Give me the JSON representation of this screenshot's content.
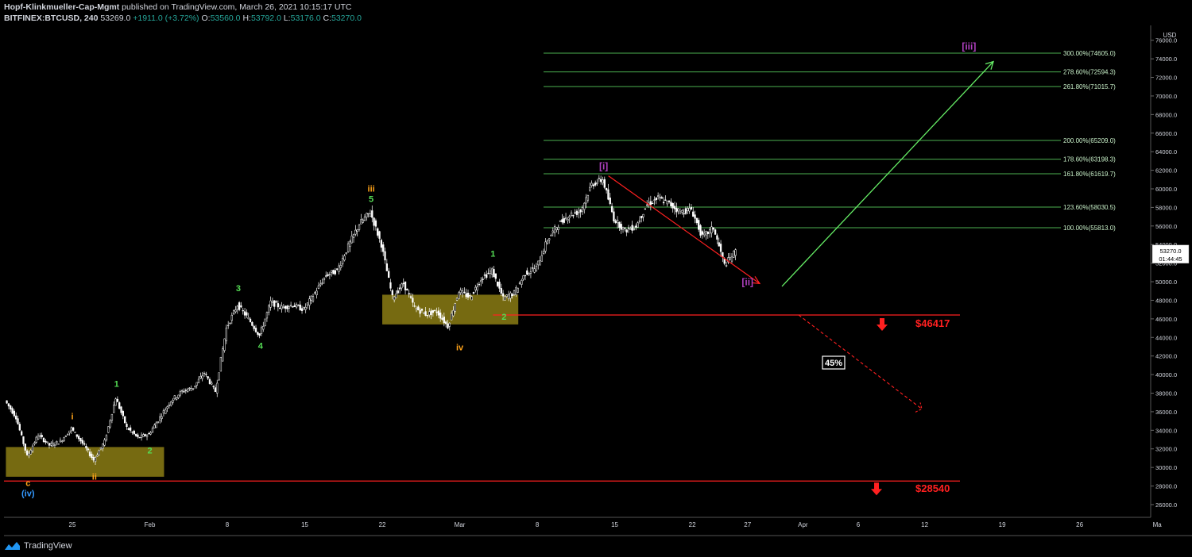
{
  "header": {
    "author": "Hopf-Klinkmueller-Cap-Mgmt",
    "published": "published on TradingView.com, March 26, 2021 10:15:17 UTC",
    "symbol": "BITFINEX:BTCUSD, 240",
    "last": "53269.0",
    "change": "+1911.0 (+3.72%)",
    "o_label": "O:",
    "o": "53560.0",
    "h_label": "H:",
    "h": "53792.0",
    "l_label": "L:",
    "l": "53176.0",
    "c_label": "C:",
    "c": "53270.0"
  },
  "footer": {
    "brand": "TradingView"
  },
  "colors": {
    "background": "#000000",
    "candle": "#ffffff",
    "fib": "#4caf50",
    "red": "#ff2020",
    "green_arrow": "#66ee66",
    "box": "#8b7d14",
    "wave_green": "#55dd55",
    "wave_orange": "#ffa319",
    "wave_purple": "#b040c0",
    "wave_blue": "#3399ff"
  },
  "chart_data": {
    "type": "candlestick",
    "title": "",
    "currency": "USD",
    "ylim": [
      24800,
      77600
    ],
    "x_ticks": [
      "25",
      "Feb",
      "8",
      "15",
      "22",
      "Mar",
      "8",
      "15",
      "22",
      "27",
      "Apr",
      "6",
      "12",
      "19",
      "26",
      "Ma"
    ],
    "x_tick_dates": [
      "2021-01-25",
      "2021-02-01",
      "2021-02-08",
      "2021-02-15",
      "2021-02-22",
      "2021-03-01",
      "2021-03-08",
      "2021-03-15",
      "2021-03-22",
      "2021-03-27",
      "2021-04-01",
      "2021-04-06",
      "2021-04-12",
      "2021-04-19",
      "2021-04-26",
      "2021-05-03"
    ],
    "y_ticks": [
      "26000.0",
      "28000.0",
      "30000.0",
      "32000.0",
      "34000.0",
      "36000.0",
      "38000.0",
      "40000.0",
      "42000.0",
      "44000.0",
      "46000.0",
      "48000.0",
      "50000.0",
      "52000.0",
      "54000.0",
      "56000.0",
      "58000.0",
      "60000.0",
      "62000.0",
      "64000.0",
      "66000.0",
      "68000.0",
      "70000.0",
      "72000.0",
      "74000.0",
      "76000.0"
    ],
    "last_price_label": "53270.0",
    "countdown_label": "01:44:45",
    "price_path": [
      [
        "2021-01-19",
        37200
      ],
      [
        "2021-01-20",
        35400
      ],
      [
        "2021-01-21",
        31200
      ],
      [
        "2021-01-22",
        33500
      ],
      [
        "2021-01-23",
        32400
      ],
      [
        "2021-01-24",
        32800
      ],
      [
        "2021-01-25",
        34200
      ],
      [
        "2021-01-26",
        32600
      ],
      [
        "2021-01-27",
        30800
      ],
      [
        "2021-01-28",
        32800
      ],
      [
        "2021-01-29",
        37500
      ],
      [
        "2021-01-30",
        34300
      ],
      [
        "2021-01-31",
        33200
      ],
      [
        "2021-02-01",
        33600
      ],
      [
        "2021-02-02",
        35400
      ],
      [
        "2021-02-03",
        37200
      ],
      [
        "2021-02-04",
        38200
      ],
      [
        "2021-02-05",
        38600
      ],
      [
        "2021-02-06",
        40200
      ],
      [
        "2021-02-07",
        38200
      ],
      [
        "2021-02-08",
        45000
      ],
      [
        "2021-02-09",
        47500
      ],
      [
        "2021-02-10",
        46000
      ],
      [
        "2021-02-11",
        44200
      ],
      [
        "2021-02-12",
        47800
      ],
      [
        "2021-02-13",
        47200
      ],
      [
        "2021-02-14",
        47500
      ],
      [
        "2021-02-15",
        47000
      ],
      [
        "2021-02-16",
        48800
      ],
      [
        "2021-02-17",
        50700
      ],
      [
        "2021-02-18",
        51200
      ],
      [
        "2021-02-19",
        53800
      ],
      [
        "2021-02-20",
        56200
      ],
      [
        "2021-02-21",
        57500
      ],
      [
        "2021-02-22",
        54000
      ],
      [
        "2021-02-23",
        48300
      ],
      [
        "2021-02-24",
        49800
      ],
      [
        "2021-02-25",
        47200
      ],
      [
        "2021-02-26",
        46500
      ],
      [
        "2021-02-27",
        46800
      ],
      [
        "2021-02-28",
        45200
      ],
      [
        "2021-03-01",
        49000
      ],
      [
        "2021-03-02",
        48300
      ],
      [
        "2021-03-03",
        50300
      ],
      [
        "2021-03-04",
        51200
      ],
      [
        "2021-03-05",
        48200
      ],
      [
        "2021-03-06",
        48800
      ],
      [
        "2021-03-07",
        50900
      ],
      [
        "2021-03-08",
        51500
      ],
      [
        "2021-03-09",
        54500
      ],
      [
        "2021-03-10",
        56200
      ],
      [
        "2021-03-11",
        57200
      ],
      [
        "2021-03-12",
        57600
      ],
      [
        "2021-03-13",
        60500
      ],
      [
        "2021-03-14",
        61000
      ],
      [
        "2021-03-15",
        56800
      ],
      [
        "2021-03-16",
        55500
      ],
      [
        "2021-03-17",
        56000
      ],
      [
        "2021-03-18",
        58300
      ],
      [
        "2021-03-19",
        59000
      ],
      [
        "2021-03-20",
        58400
      ],
      [
        "2021-03-21",
        57500
      ],
      [
        "2021-03-22",
        57800
      ],
      [
        "2021-03-23",
        54800
      ],
      [
        "2021-03-24",
        55800
      ],
      [
        "2021-03-25",
        51800
      ],
      [
        "2021-03-26",
        53270
      ]
    ],
    "fib_levels": [
      {
        "label": "300.00%(74605.0)",
        "value": 74605.0
      },
      {
        "label": "278.60%(72594.3)",
        "value": 72594.3
      },
      {
        "label": "261.80%(71015.7)",
        "value": 71015.7
      },
      {
        "label": "200.00%(65209.0)",
        "value": 65209.0
      },
      {
        "label": "178.60%(63198.3)",
        "value": 63198.3
      },
      {
        "label": "161.80%(61619.7)",
        "value": 61619.7
      },
      {
        "label": "123.60%(58030.5)",
        "value": 58030.5
      },
      {
        "label": "100.00%(55813.0)",
        "value": 55813.0
      }
    ],
    "support_levels": [
      {
        "label": "$46417",
        "value": 46417
      },
      {
        "label": "$28540",
        "value": 28540
      }
    ],
    "zones": [
      {
        "from": "2021-01-19",
        "to": "2021-02-02",
        "low": 29000,
        "high": 32200
      },
      {
        "from": "2021-02-22",
        "to": "2021-03-06",
        "low": 45400,
        "high": 48600
      }
    ],
    "annotations": [
      {
        "text": "c",
        "date": "2021-01-21",
        "price": 28000,
        "color": "wave_orange"
      },
      {
        "text": "(iv)",
        "date": "2021-01-21",
        "price": 26900,
        "color": "wave_blue"
      },
      {
        "text": "i",
        "date": "2021-01-25",
        "price": 35200,
        "color": "wave_orange"
      },
      {
        "text": "ii",
        "date": "2021-01-27",
        "price": 28700,
        "color": "wave_orange"
      },
      {
        "text": "1",
        "date": "2021-01-29",
        "price": 38700,
        "color": "wave_green"
      },
      {
        "text": "2",
        "date": "2021-02-01",
        "price": 31500,
        "color": "wave_green"
      },
      {
        "text": "3",
        "date": "2021-02-09",
        "price": 49000,
        "color": "wave_green"
      },
      {
        "text": "4",
        "date": "2021-02-11",
        "price": 42800,
        "color": "wave_green"
      },
      {
        "text": "iii",
        "date": "2021-02-21",
        "price": 59700,
        "color": "wave_orange"
      },
      {
        "text": "5",
        "date": "2021-02-21",
        "price": 58600,
        "color": "wave_green"
      },
      {
        "text": "iv",
        "date": "2021-03-01",
        "price": 42600,
        "color": "wave_orange"
      },
      {
        "text": "1",
        "date": "2021-03-04",
        "price": 52700,
        "color": "wave_green"
      },
      {
        "text": "2",
        "date": "2021-03-05",
        "price": 45900,
        "color": "wave_green"
      },
      {
        "text": "[i]",
        "date": "2021-03-14",
        "price": 62100,
        "color": "wave_purple"
      },
      {
        "text": "[ii]",
        "date": "2021-03-27",
        "price": 49600,
        "color": "wave_purple"
      },
      {
        "text": "[iii]",
        "date": "2021-04-16",
        "price": 75000,
        "color": "wave_purple"
      }
    ],
    "badge": "45%"
  }
}
